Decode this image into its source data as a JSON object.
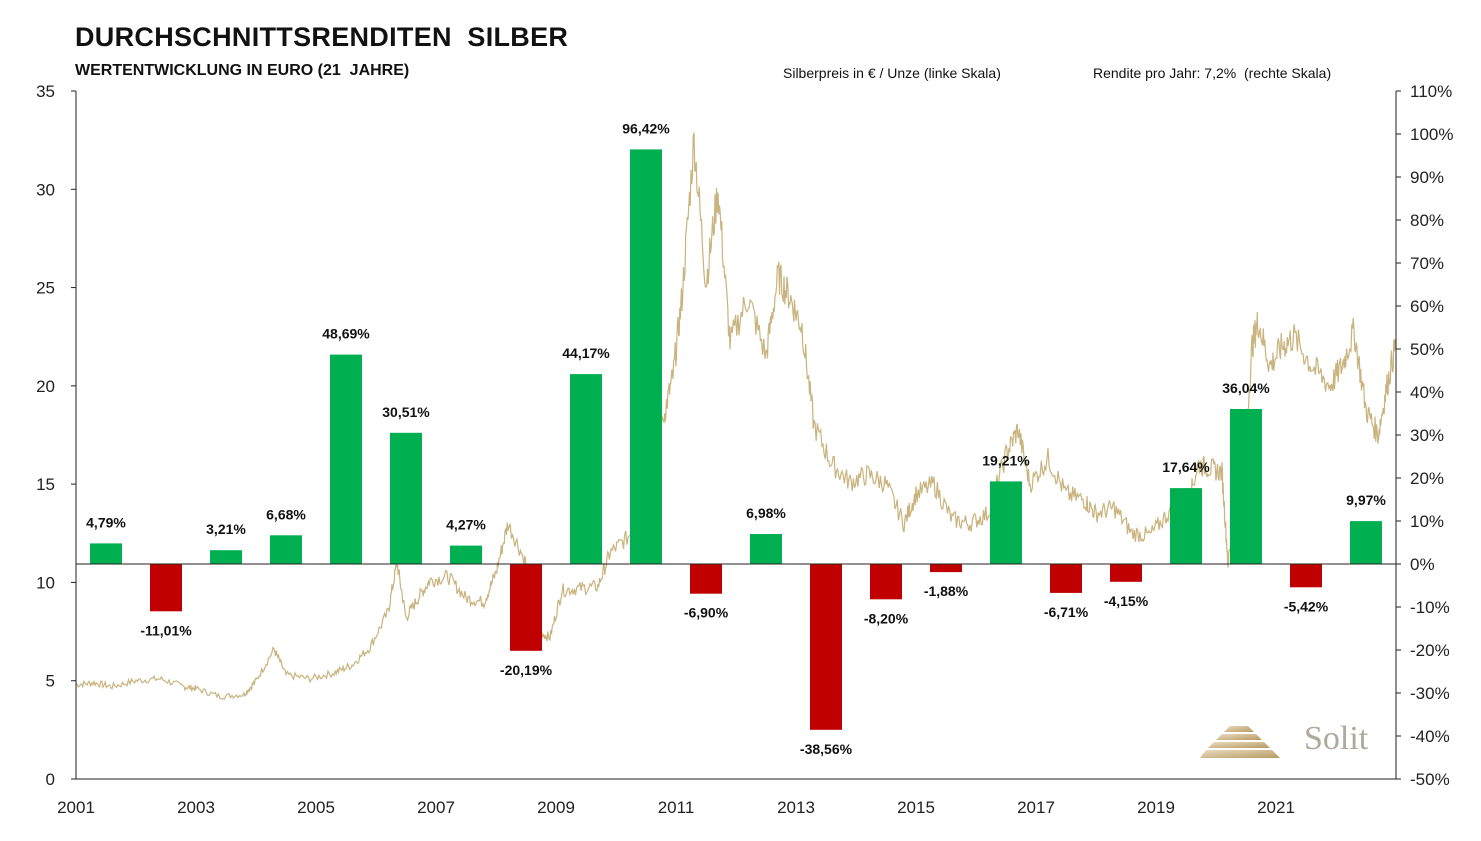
{
  "header": {
    "title": "DURCHSCHNITTSRENDITEN  SILBER",
    "subtitle": "WERTENTWICKLUNG IN EURO (21  JAHRE)",
    "legend_left": "Silberpreis in € / Unze (linke Skala)",
    "legend_right": "Rendite pro Jahr: 7,2%  (rechte Skala)"
  },
  "logo": {
    "text": "Solit",
    "icon": "stepped-pyramid-icon"
  },
  "chart_data": {
    "type": "bar",
    "left_axis": {
      "ylim": [
        0,
        35
      ],
      "ticks": [
        "0",
        "5",
        "10",
        "15",
        "20",
        "25",
        "30",
        "35"
      ]
    },
    "right_axis": {
      "ylim": [
        -50,
        110
      ],
      "ticks": [
        "-50%",
        "-40%",
        "-30%",
        "-20%",
        "-10%",
        "0%",
        "10%",
        "20%",
        "30%",
        "40%",
        "50%",
        "60%",
        "70%",
        "80%",
        "90%",
        "100%",
        "110%"
      ]
    },
    "x_axis": {
      "xlim": [
        2001,
        2023
      ],
      "ticks": [
        "2001",
        "2003",
        "2005",
        "2007",
        "2009",
        "2011",
        "2013",
        "2015",
        "2017",
        "2019",
        "2021"
      ]
    },
    "colors": {
      "positive": "#00b050",
      "negative": "#c00000",
      "price_line": "#c9b37e"
    },
    "bars": [
      {
        "year": 2001,
        "value": 4.79,
        "label": "4,79%"
      },
      {
        "year": 2002,
        "value": -11.01,
        "label": "-11,01%"
      },
      {
        "year": 2003,
        "value": 3.21,
        "label": "3,21%"
      },
      {
        "year": 2004,
        "value": 6.68,
        "label": "6,68%"
      },
      {
        "year": 2005,
        "value": 48.69,
        "label": "48,69%"
      },
      {
        "year": 2006,
        "value": 30.51,
        "label": "30,51%"
      },
      {
        "year": 2007,
        "value": 4.27,
        "label": "4,27%"
      },
      {
        "year": 2008,
        "value": -20.19,
        "label": "-20,19%"
      },
      {
        "year": 2009,
        "value": 44.17,
        "label": "44,17%"
      },
      {
        "year": 2010,
        "value": 96.42,
        "label": "96,42%"
      },
      {
        "year": 2011,
        "value": -6.9,
        "label": "-6,90%"
      },
      {
        "year": 2012,
        "value": 6.98,
        "label": "6,98%"
      },
      {
        "year": 2013,
        "value": -38.56,
        "label": "-38,56%"
      },
      {
        "year": 2014,
        "value": -8.2,
        "label": "-8,20%"
      },
      {
        "year": 2015,
        "value": -1.88,
        "label": "-1,88%"
      },
      {
        "year": 2016,
        "value": 19.21,
        "label": "19,21%"
      },
      {
        "year": 2017,
        "value": -6.71,
        "label": "-6,71%"
      },
      {
        "year": 2018,
        "value": -4.15,
        "label": "-4,15%"
      },
      {
        "year": 2019,
        "value": 17.64,
        "label": "17,64%"
      },
      {
        "year": 2020,
        "value": 36.04,
        "label": "36,04%"
      },
      {
        "year": 2021,
        "value": -5.42,
        "label": "-5,42%"
      },
      {
        "year": 2022,
        "value": 9.97,
        "label": "9,97%"
      }
    ],
    "price_series": [
      [
        2001.0,
        4.8
      ],
      [
        2001.3,
        4.9
      ],
      [
        2001.6,
        4.7
      ],
      [
        2002.0,
        5.0
      ],
      [
        2002.4,
        5.1
      ],
      [
        2002.8,
        4.7
      ],
      [
        2003.0,
        4.6
      ],
      [
        2003.4,
        4.2
      ],
      [
        2003.8,
        4.3
      ],
      [
        2004.0,
        5.0
      ],
      [
        2004.3,
        6.6
      ],
      [
        2004.5,
        5.3
      ],
      [
        2004.9,
        5.1
      ],
      [
        2005.3,
        5.4
      ],
      [
        2005.6,
        5.8
      ],
      [
        2005.9,
        6.7
      ],
      [
        2006.2,
        8.5
      ],
      [
        2006.35,
        11.0
      ],
      [
        2006.5,
        8.2
      ],
      [
        2006.7,
        9.2
      ],
      [
        2006.9,
        10.1
      ],
      [
        2007.2,
        10.3
      ],
      [
        2007.5,
        9.2
      ],
      [
        2007.8,
        9.0
      ],
      [
        2008.0,
        10.5
      ],
      [
        2008.2,
        13.0
      ],
      [
        2008.5,
        11.0
      ],
      [
        2008.7,
        7.5
      ],
      [
        2008.9,
        7.2
      ],
      [
        2009.1,
        9.6
      ],
      [
        2009.4,
        9.7
      ],
      [
        2009.7,
        9.8
      ],
      [
        2009.9,
        11.5
      ],
      [
        2010.2,
        12.3
      ],
      [
        2010.5,
        14.0
      ],
      [
        2010.8,
        18.5
      ],
      [
        2010.95,
        20.5
      ],
      [
        2011.1,
        24.5
      ],
      [
        2011.3,
        32.5
      ],
      [
        2011.5,
        25.2
      ],
      [
        2011.7,
        30.0
      ],
      [
        2011.9,
        22.2
      ],
      [
        2012.2,
        24.5
      ],
      [
        2012.5,
        21.5
      ],
      [
        2012.7,
        25.6
      ],
      [
        2012.9,
        24.5
      ],
      [
        2013.1,
        23.0
      ],
      [
        2013.3,
        18.0
      ],
      [
        2013.6,
        16.0
      ],
      [
        2013.9,
        15.1
      ],
      [
        2014.2,
        15.5
      ],
      [
        2014.5,
        15.0
      ],
      [
        2014.8,
        13.0
      ],
      [
        2015.0,
        14.5
      ],
      [
        2015.3,
        15.0
      ],
      [
        2015.6,
        13.2
      ],
      [
        2015.9,
        13.0
      ],
      [
        2016.2,
        13.5
      ],
      [
        2016.5,
        16.5
      ],
      [
        2016.7,
        17.8
      ],
      [
        2016.9,
        15.0
      ],
      [
        2017.2,
        16.3
      ],
      [
        2017.5,
        14.5
      ],
      [
        2017.8,
        14.2
      ],
      [
        2018.0,
        13.5
      ],
      [
        2018.3,
        13.8
      ],
      [
        2018.6,
        12.5
      ],
      [
        2018.9,
        12.4
      ],
      [
        2019.2,
        13.5
      ],
      [
        2019.5,
        13.6
      ],
      [
        2019.7,
        16.0
      ],
      [
        2019.9,
        15.8
      ],
      [
        2020.1,
        15.6
      ],
      [
        2020.2,
        11.0
      ],
      [
        2020.45,
        15.2
      ],
      [
        2020.6,
        22.0
      ],
      [
        2020.7,
        23.3
      ],
      [
        2020.9,
        21.0
      ],
      [
        2021.1,
        22.0
      ],
      [
        2021.3,
        22.5
      ],
      [
        2021.6,
        21.0
      ],
      [
        2021.9,
        20.0
      ],
      [
        2022.1,
        21.0
      ],
      [
        2022.3,
        22.8
      ],
      [
        2022.5,
        18.8
      ],
      [
        2022.7,
        17.5
      ],
      [
        2022.85,
        20.0
      ],
      [
        2023.0,
        22.2
      ]
    ]
  }
}
